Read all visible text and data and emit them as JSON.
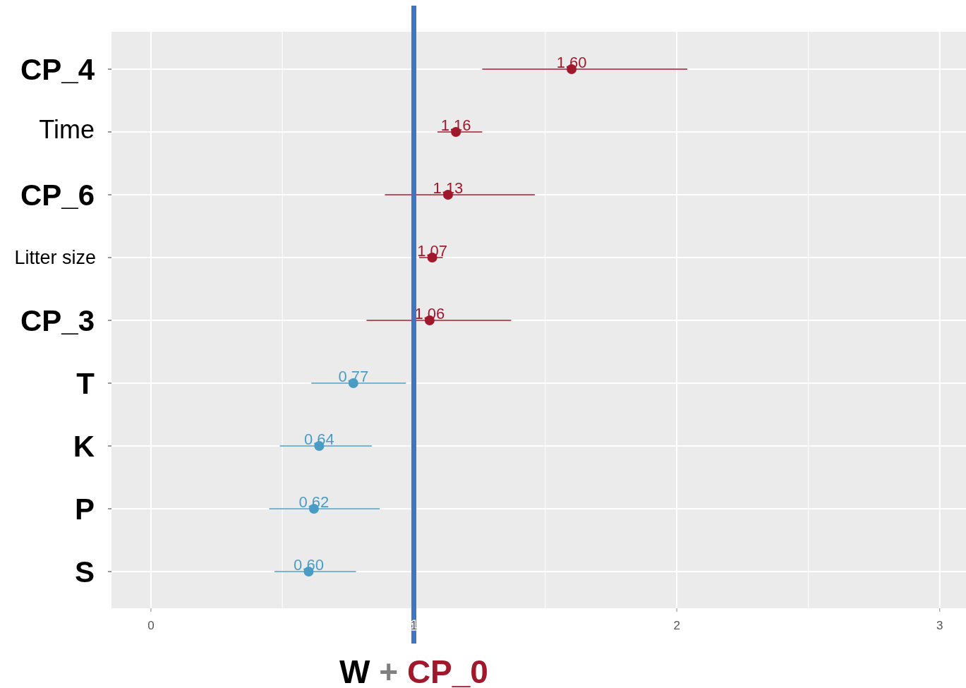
{
  "chart_data": {
    "type": "scatter",
    "orientation": "horizontal",
    "xlabel": "W + CP_0",
    "categories": [
      "CP_4",
      "Time",
      "CP_6",
      "Litter size",
      "CP_3",
      "T",
      "K",
      "P",
      "S"
    ],
    "values": [
      1.6,
      1.16,
      1.13,
      1.07,
      1.06,
      0.77,
      0.64,
      0.62,
      0.6
    ],
    "value_labels": [
      "1.60",
      "1.16",
      "1.13",
      "1.07",
      "1.06",
      "0.77",
      "0.64",
      "0.62",
      "0.60"
    ],
    "errors": [
      [
        1.26,
        2.04
      ],
      [
        1.09,
        1.26
      ],
      [
        0.89,
        1.46
      ],
      [
        1.02,
        1.11
      ],
      [
        0.82,
        1.37
      ],
      [
        0.61,
        0.97
      ],
      [
        0.49,
        0.84
      ],
      [
        0.45,
        0.87
      ],
      [
        0.47,
        0.78
      ]
    ],
    "colors": [
      "#a0182b",
      "#a0182b",
      "#a0182b",
      "#a0182b",
      "#a0182b",
      "#4a9cc4",
      "#4a9cc4",
      "#4a9cc4",
      "#4a9cc4"
    ],
    "xlim": [
      -0.15,
      3.1
    ],
    "xticks": [
      0,
      1,
      2,
      3
    ],
    "ref_lines": [
      {
        "axis": "x",
        "value": 1,
        "color": "#4472c4"
      }
    ],
    "grid": true,
    "marker": "circle"
  }
}
